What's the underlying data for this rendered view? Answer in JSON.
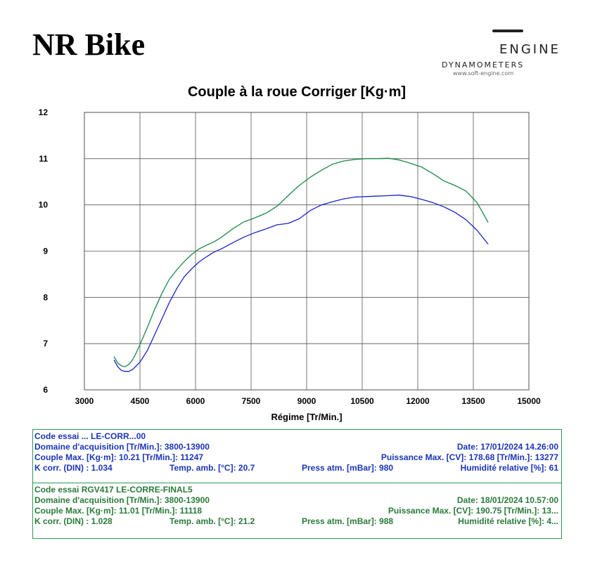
{
  "page": {
    "title": "NR Bike"
  },
  "logo": {
    "word": "ENGINE",
    "sub": "DYNAMOMETERS",
    "url": "www.soft-engine.com"
  },
  "colors": {
    "series1": "#1a22c8",
    "series2": "#1b8a4a",
    "grid": "#444444",
    "box": "#2e9a55",
    "text_blue": "#1a35b8"
  },
  "chart_data": {
    "type": "line",
    "title": "Couple à la roue Corriger [Kg·m]",
    "xlabel": "Régime [Tr/Min.]",
    "ylabel": "",
    "xlim": [
      3000,
      15000
    ],
    "ylim": [
      6,
      12
    ],
    "xticks": [
      3000,
      4500,
      6000,
      7500,
      9000,
      10500,
      12000,
      13500,
      15000
    ],
    "yticks": [
      6,
      7,
      8,
      9,
      10,
      11,
      12
    ],
    "grid": true,
    "series": [
      {
        "name": "Code essai ... LE-CORR...00",
        "color": "#1a22c8",
        "x": [
          3800,
          3900,
          4000,
          4100,
          4200,
          4300,
          4400,
          4500,
          4700,
          4900,
          5100,
          5300,
          5500,
          5700,
          5900,
          6100,
          6300,
          6500,
          6700,
          7000,
          7300,
          7600,
          7900,
          8200,
          8500,
          8800,
          9100,
          9400,
          9700,
          10000,
          10300,
          10600,
          10900,
          11200,
          11500,
          11800,
          12100,
          12400,
          12700,
          13000,
          13300,
          13600,
          13900
        ],
        "y": [
          6.65,
          6.5,
          6.42,
          6.4,
          6.4,
          6.44,
          6.52,
          6.6,
          6.85,
          7.2,
          7.55,
          7.9,
          8.2,
          8.45,
          8.62,
          8.77,
          8.88,
          8.98,
          9.05,
          9.18,
          9.3,
          9.4,
          9.48,
          9.57,
          9.6,
          9.7,
          9.88,
          10.0,
          10.07,
          10.13,
          10.17,
          10.18,
          10.19,
          10.2,
          10.21,
          10.18,
          10.12,
          10.05,
          9.96,
          9.84,
          9.68,
          9.45,
          9.15
        ]
      },
      {
        "name": "Code essai RGV417 LE-CORRE-FINAL5",
        "color": "#1b8a4a",
        "x": [
          3800,
          3900,
          4000,
          4100,
          4200,
          4300,
          4400,
          4500,
          4700,
          4900,
          5100,
          5300,
          5500,
          5700,
          5900,
          6100,
          6300,
          6500,
          6700,
          7000,
          7300,
          7600,
          7900,
          8200,
          8500,
          8800,
          9100,
          9400,
          9700,
          10000,
          10300,
          10600,
          10900,
          11200,
          11500,
          11800,
          12100,
          12400,
          12700,
          13000,
          13300,
          13600,
          13900
        ],
        "y": [
          6.72,
          6.58,
          6.52,
          6.5,
          6.55,
          6.65,
          6.8,
          6.98,
          7.35,
          7.75,
          8.1,
          8.4,
          8.6,
          8.78,
          8.93,
          9.05,
          9.13,
          9.2,
          9.3,
          9.48,
          9.63,
          9.72,
          9.82,
          9.97,
          10.2,
          10.42,
          10.6,
          10.75,
          10.88,
          10.95,
          10.98,
          11.0,
          11.0,
          11.01,
          10.97,
          10.9,
          10.82,
          10.68,
          10.52,
          10.42,
          10.3,
          10.05,
          9.62
        ]
      }
    ]
  },
  "info1": {
    "code": "Code essai ... LE-CORR...00",
    "domaine": "Domaine d'acquisition [Tr/Min.]: 3800-13900",
    "date": "Date: 17/01/2024   14.26:00",
    "couple": "Couple Max. [Kg·m]: 10.21   [Tr/Min.]: 11247",
    "puissance": "Puissance Max. [CV]: 178.68   [Tr/Min.]: 13277",
    "kcorr": "K corr. (DIN) : 1.034",
    "temp": "Temp. amb. [°C]: 20.7",
    "press": "Press atm. [mBar]: 980",
    "humid": "Humidité relative [%]: 61"
  },
  "info2": {
    "code": "Code essai RGV417 LE-CORRE-FINAL5",
    "domaine": "Domaine d'acquisition [Tr/Min.]: 3800-13900",
    "date": "Date: 18/01/2024   10.57:00",
    "couple": "Couple Max. [Kg·m]: 11.01   [Tr/Min.]: 11118",
    "puissance": "Puissance Max. [CV]: 190.75   [Tr/Min.]: 13...",
    "kcorr": "K corr. (DIN) : 1.028",
    "temp": "Temp. amb. [°C]: 21.2",
    "press": "Press atm. [mBar]: 988",
    "humid": "Humidité relative [%]: 4..."
  }
}
